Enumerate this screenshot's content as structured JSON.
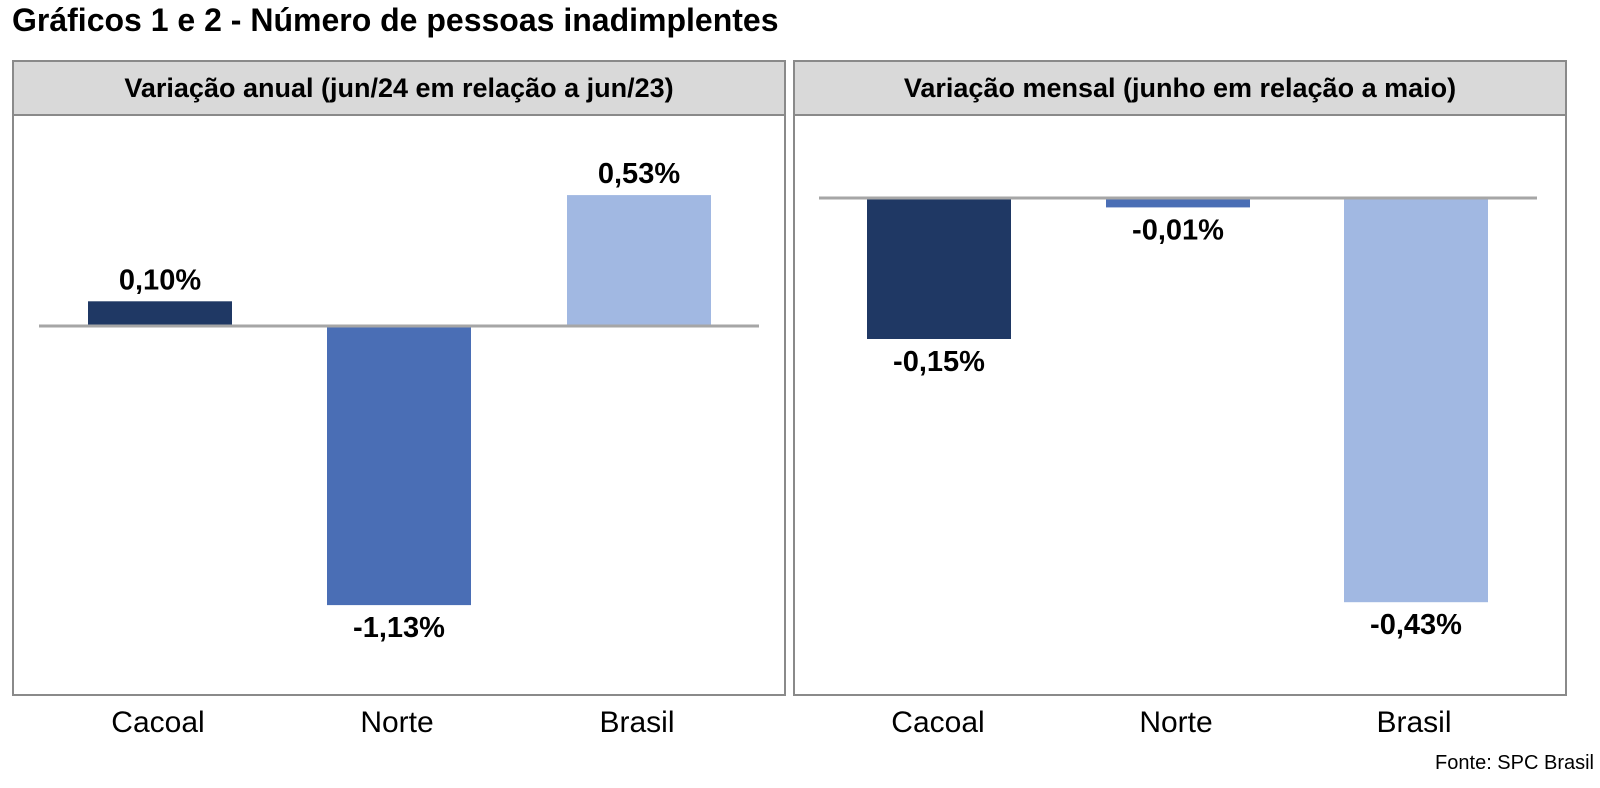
{
  "title": "Gráficos 1 e 2 - Número de pessoas inadimplentes",
  "source": "Fonte: SPC Brasil",
  "colors": {
    "cacoal": "#1f3864",
    "norte": "#4a6eb5",
    "brasil": "#a1b8e2",
    "baseline": "#a6a6a6"
  },
  "chart_data": [
    {
      "type": "bar",
      "title": "Variação anual (jun/24 em relação a jun/23)",
      "categories": [
        "Cacoal",
        "Norte",
        "Brasil"
      ],
      "values": [
        0.1,
        -1.13,
        0.53
      ],
      "value_labels": [
        "0,10%",
        "-1,13%",
        "0,53%"
      ],
      "unit": "%",
      "grid": false,
      "legend": "none"
    },
    {
      "type": "bar",
      "title": "Variação mensal (junho em relação a maio)",
      "categories": [
        "Cacoal",
        "Norte",
        "Brasil"
      ],
      "values": [
        -0.15,
        -0.01,
        -0.43
      ],
      "value_labels": [
        "-0,15%",
        "-0,01%",
        "-0,43%"
      ],
      "unit": "%",
      "grid": false,
      "legend": "none"
    }
  ]
}
